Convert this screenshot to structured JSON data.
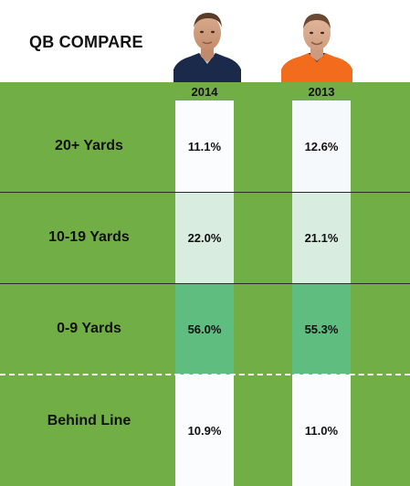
{
  "title": "QB COMPARE",
  "chart_data": {
    "type": "table",
    "columns": [
      "2014",
      "2013"
    ],
    "rows": [
      {
        "label": "20+ Yards",
        "values": [
          "11.1%",
          "12.6%"
        ]
      },
      {
        "label": "10-19 Yards",
        "values": [
          "22.0%",
          "21.1%"
        ]
      },
      {
        "label": "0-9 Yards",
        "values": [
          "56.0%",
          "55.3%"
        ]
      },
      {
        "label": "Behind Line",
        "values": [
          "10.9%",
          "11.0%"
        ]
      }
    ],
    "cell_colors": [
      [
        "#fbfcfe",
        "#f5f9fb"
      ],
      [
        "#d9ece0",
        "#d9ece0"
      ],
      [
        "#5fbd80",
        "#5fbd80"
      ],
      [
        "#fbfcfe",
        "#fbfcfe"
      ]
    ]
  },
  "colors": {
    "field": "#72ae46",
    "jersey_patriots": "#1b2a4a",
    "jersey_broncos": "#f36b1c"
  },
  "photos": [
    {
      "icon": "player-photo-1-icon"
    },
    {
      "icon": "player-photo-2-icon"
    }
  ]
}
